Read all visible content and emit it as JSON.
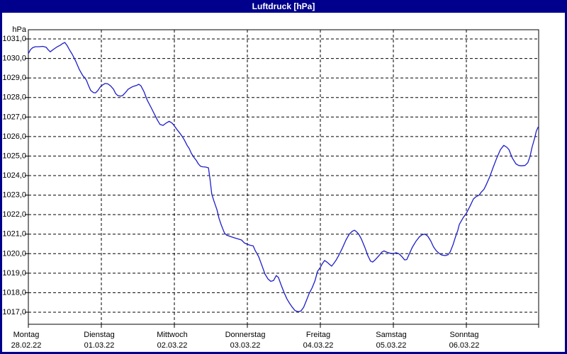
{
  "window": {
    "title": "Luftdruck [hPa]"
  },
  "colors": {
    "titlebar_bg": "#00008c",
    "window_border": "#00008c",
    "title_text": "#ffffff",
    "plot_bg": "#ffffff",
    "grid": "#000000",
    "axis_text": "#000000",
    "curve": "#1e1ec8"
  },
  "chart_data": {
    "type": "line",
    "title": "Luftdruck [hPa]",
    "ylabel_unit": "hPa",
    "ylim": [
      1016.5,
      1031.5
    ],
    "y_axis": {
      "unit": "hPa",
      "max": 1031.0,
      "min": 1017.0,
      "tick_step": 1.0,
      "tick_labels": [
        "1031,0",
        "1030,0",
        "1029,0",
        "1028,0",
        "1027,0",
        "1026,0",
        "1025,0",
        "1024,0",
        "1023,0",
        "1022,0",
        "1021,0",
        "1020,0",
        "1019,0",
        "1018,0",
        "1017,0"
      ]
    },
    "x_axis": {
      "hours_total": 168,
      "days": [
        {
          "name": "Montag",
          "date": "28.02.22"
        },
        {
          "name": "Dienstag",
          "date": "01.03.22"
        },
        {
          "name": "Mittwoch",
          "date": "02.03.22"
        },
        {
          "name": "Donnerstag",
          "date": "03.03.22"
        },
        {
          "name": "Freitag",
          "date": "04.03.22"
        },
        {
          "name": "Samstag",
          "date": "05.03.22"
        },
        {
          "name": "Sonntag",
          "date": "06.03.22"
        }
      ]
    },
    "grid": {
      "dashed": true,
      "vertical_at_each_midnight": true
    },
    "legend": "none",
    "series": [
      {
        "name": "Luftdruck",
        "unit": "hPa",
        "points_t_hours_vs_hpa": [
          [
            0,
            1030.25
          ],
          [
            0.7,
            1030.45
          ],
          [
            1.4,
            1030.55
          ],
          [
            2.3,
            1030.6
          ],
          [
            3.5,
            1030.6
          ],
          [
            4.7,
            1030.62
          ],
          [
            5.8,
            1030.58
          ],
          [
            6.5,
            1030.45
          ],
          [
            7.2,
            1030.34
          ],
          [
            8.2,
            1030.46
          ],
          [
            9.3,
            1030.58
          ],
          [
            10.5,
            1030.68
          ],
          [
            11.2,
            1030.76
          ],
          [
            12,
            1030.82
          ],
          [
            12.8,
            1030.65
          ],
          [
            13.5,
            1030.45
          ],
          [
            14.4,
            1030.22
          ],
          [
            15.6,
            1029.85
          ],
          [
            16.8,
            1029.42
          ],
          [
            17.9,
            1029.12
          ],
          [
            18.6,
            1029
          ],
          [
            19.1,
            1028.88
          ],
          [
            19.8,
            1028.6
          ],
          [
            20.5,
            1028.36
          ],
          [
            21.4,
            1028.25
          ],
          [
            22.1,
            1028.24
          ],
          [
            22.8,
            1028.35
          ],
          [
            23.7,
            1028.55
          ],
          [
            24.5,
            1028.65
          ],
          [
            25.2,
            1028.72
          ],
          [
            26.1,
            1028.7
          ],
          [
            27,
            1028.6
          ],
          [
            28,
            1028.42
          ],
          [
            28.7,
            1028.2
          ],
          [
            29.4,
            1028.1
          ],
          [
            30.3,
            1028.07
          ],
          [
            31,
            1028.1
          ],
          [
            31.9,
            1028.25
          ],
          [
            32.8,
            1028.42
          ],
          [
            33.8,
            1028.52
          ],
          [
            34.7,
            1028.58
          ],
          [
            35.6,
            1028.62
          ],
          [
            36.3,
            1028.68
          ],
          [
            37,
            1028.6
          ],
          [
            38,
            1028.3
          ],
          [
            39.1,
            1027.86
          ],
          [
            40.3,
            1027.5
          ],
          [
            41.5,
            1027.13
          ],
          [
            42.4,
            1026.85
          ],
          [
            43.3,
            1026.62
          ],
          [
            44.3,
            1026.57
          ],
          [
            45.2,
            1026.68
          ],
          [
            46.3,
            1026.78
          ],
          [
            47.3,
            1026.68
          ],
          [
            48,
            1026.55
          ],
          [
            48.9,
            1026.35
          ],
          [
            49.9,
            1026.15
          ],
          [
            50.6,
            1026
          ],
          [
            51.3,
            1025.82
          ],
          [
            52.2,
            1025.55
          ],
          [
            52.9,
            1025.38
          ],
          [
            53.6,
            1025.14
          ],
          [
            54.5,
            1024.92
          ],
          [
            55.2,
            1024.78
          ],
          [
            55.9,
            1024.6
          ],
          [
            56.6,
            1024.48
          ],
          [
            57.3,
            1024.45
          ],
          [
            58.2,
            1024.44
          ],
          [
            59.2,
            1024.4
          ],
          [
            59.7,
            1023.85
          ],
          [
            60.3,
            1023.05
          ],
          [
            61,
            1022.7
          ],
          [
            62,
            1022.25
          ],
          [
            62.7,
            1021.8
          ],
          [
            63.4,
            1021.48
          ],
          [
            64.1,
            1021.2
          ],
          [
            64.5,
            1021.05
          ],
          [
            65.2,
            1020.95
          ],
          [
            66.4,
            1020.88
          ],
          [
            67.6,
            1020.82
          ],
          [
            68.7,
            1020.77
          ],
          [
            70.1,
            1020.7
          ],
          [
            71,
            1020.55
          ],
          [
            72,
            1020.48
          ],
          [
            72.9,
            1020.43
          ],
          [
            73.9,
            1020.4
          ],
          [
            74.6,
            1020.15
          ],
          [
            75.7,
            1019.85
          ],
          [
            76.9,
            1019.35
          ],
          [
            77.8,
            1018.95
          ],
          [
            78.8,
            1018.7
          ],
          [
            79.7,
            1018.58
          ],
          [
            80.6,
            1018.62
          ],
          [
            81.5,
            1018.88
          ],
          [
            82.2,
            1018.78
          ],
          [
            83.1,
            1018.4
          ],
          [
            84.1,
            1018
          ],
          [
            85,
            1017.68
          ],
          [
            85.9,
            1017.45
          ],
          [
            86.8,
            1017.25
          ],
          [
            87.7,
            1017.08
          ],
          [
            88.7,
            1017.03
          ],
          [
            89.6,
            1017.06
          ],
          [
            90.5,
            1017.25
          ],
          [
            91.4,
            1017.6
          ],
          [
            92.3,
            1017.95
          ],
          [
            93.3,
            1018.25
          ],
          [
            94.2,
            1018.6
          ],
          [
            95.1,
            1019.1
          ],
          [
            96,
            1019.3
          ],
          [
            96.7,
            1019.5
          ],
          [
            97.4,
            1019.65
          ],
          [
            98.3,
            1019.55
          ],
          [
            99,
            1019.45
          ],
          [
            99.7,
            1019.36
          ],
          [
            100.4,
            1019.5
          ],
          [
            101.1,
            1019.65
          ],
          [
            102,
            1019.9
          ],
          [
            103.2,
            1020.27
          ],
          [
            104.4,
            1020.7
          ],
          [
            105.5,
            1021
          ],
          [
            106.5,
            1021.15
          ],
          [
            107.2,
            1021.2
          ],
          [
            107.9,
            1021.12
          ],
          [
            108.6,
            1021
          ],
          [
            109.5,
            1020.75
          ],
          [
            110.6,
            1020.33
          ],
          [
            111.6,
            1019.9
          ],
          [
            112.5,
            1019.62
          ],
          [
            113.2,
            1019.57
          ],
          [
            114.1,
            1019.7
          ],
          [
            115.3,
            1019.9
          ],
          [
            116.2,
            1020.08
          ],
          [
            116.9,
            1020.14
          ],
          [
            117.8,
            1020.08
          ],
          [
            119,
            1020.02
          ],
          [
            120,
            1020
          ],
          [
            120.9,
            1020.05
          ],
          [
            121.8,
            1020
          ],
          [
            122.8,
            1019.85
          ],
          [
            123.7,
            1019.68
          ],
          [
            124.4,
            1019.7
          ],
          [
            125.3,
            1020
          ],
          [
            126.2,
            1020.32
          ],
          [
            127.4,
            1020.63
          ],
          [
            128.6,
            1020.87
          ],
          [
            129.5,
            1020.97
          ],
          [
            130.4,
            1021
          ],
          [
            131.3,
            1020.9
          ],
          [
            132.3,
            1020.65
          ],
          [
            133.2,
            1020.35
          ],
          [
            134.1,
            1020.15
          ],
          [
            135,
            1020.02
          ],
          [
            135.9,
            1019.93
          ],
          [
            137.1,
            1019.9
          ],
          [
            138,
            1019.95
          ],
          [
            138.7,
            1020.1
          ],
          [
            139.6,
            1020.45
          ],
          [
            140.4,
            1020.85
          ],
          [
            141.2,
            1021.2
          ],
          [
            141.7,
            1021.5
          ],
          [
            142.9,
            1021.83
          ],
          [
            144,
            1022.07
          ],
          [
            145.2,
            1022.43
          ],
          [
            146.3,
            1022.8
          ],
          [
            147.2,
            1022.92
          ],
          [
            148.2,
            1023
          ],
          [
            148.9,
            1023.15
          ],
          [
            149.8,
            1023.3
          ],
          [
            150.5,
            1023.52
          ],
          [
            151.7,
            1023.94
          ],
          [
            152.8,
            1024.42
          ],
          [
            154,
            1024.9
          ],
          [
            155.2,
            1025.33
          ],
          [
            156.3,
            1025.55
          ],
          [
            157.3,
            1025.45
          ],
          [
            158,
            1025.33
          ],
          [
            159.1,
            1024.9
          ],
          [
            160.3,
            1024.6
          ],
          [
            161.2,
            1024.52
          ],
          [
            162.1,
            1024.5
          ],
          [
            163.3,
            1024.52
          ],
          [
            164.2,
            1024.66
          ],
          [
            164.9,
            1024.96
          ],
          [
            165.6,
            1025.45
          ],
          [
            166.5,
            1025.95
          ],
          [
            167,
            1026.28
          ],
          [
            167.5,
            1026.45
          ],
          [
            167.7,
            1026.5
          ]
        ]
      }
    ]
  }
}
